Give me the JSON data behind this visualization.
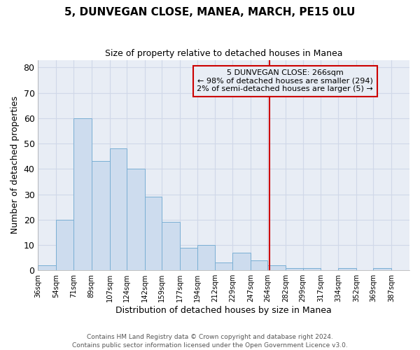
{
  "title": "5, DUNVEGAN CLOSE, MANEA, MARCH, PE15 0LU",
  "subtitle": "Size of property relative to detached houses in Manea",
  "xlabel": "Distribution of detached houses by size in Manea",
  "ylabel": "Number of detached properties",
  "bar_edges": [
    36,
    54,
    71,
    89,
    107,
    124,
    142,
    159,
    177,
    194,
    212,
    229,
    247,
    264,
    282,
    299,
    317,
    334,
    352,
    369,
    387
  ],
  "bar_heights": [
    2,
    20,
    60,
    43,
    48,
    40,
    29,
    19,
    9,
    10,
    3,
    7,
    4,
    2,
    1,
    1,
    0,
    1,
    0,
    1
  ],
  "bar_color": "#cddcee",
  "bar_edge_color": "#7aafd4",
  "vline_x": 266,
  "vline_color": "#cc0000",
  "annotation_line1": "5 DUNVEGAN CLOSE: 266sqm",
  "annotation_line2": "← 98% of detached houses are smaller (294)",
  "annotation_line3": "2% of semi-detached houses are larger (5) →",
  "ylim": [
    0,
    83
  ],
  "yticks": [
    0,
    10,
    20,
    30,
    40,
    50,
    60,
    70,
    80
  ],
  "plot_bg_color": "#e8edf5",
  "fig_bg_color": "#ffffff",
  "grid_color": "#d0d8e8",
  "footer_line1": "Contains HM Land Registry data © Crown copyright and database right 2024.",
  "footer_line2": "Contains public sector information licensed under the Open Government Licence v3.0."
}
